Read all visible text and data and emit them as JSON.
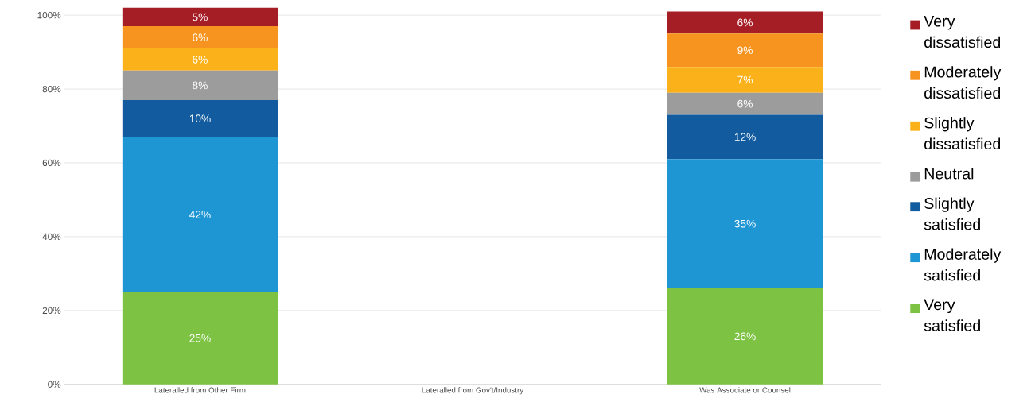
{
  "chart_data": {
    "type": "bar",
    "stacked": true,
    "categories": [
      "Lateralled from Other Firm",
      "Lateralled from Gov't/Industry",
      "Was Associate or Counsel"
    ],
    "series": [
      {
        "name": "Very satisfied",
        "color": "#7dc242",
        "values": [
          25,
          null,
          26
        ],
        "value_labels": [
          "25%",
          null,
          "26%"
        ]
      },
      {
        "name": "Moderately satisfied",
        "color": "#1f96d4",
        "values": [
          42,
          null,
          35
        ],
        "value_labels": [
          "42%",
          null,
          "35%"
        ]
      },
      {
        "name": "Slightly satisfied",
        "color": "#115b9e",
        "values": [
          10,
          null,
          12
        ],
        "value_labels": [
          "10%",
          null,
          "12%"
        ]
      },
      {
        "name": "Neutral",
        "color": "#9b9c9b",
        "values": [
          8,
          null,
          6
        ],
        "value_labels": [
          "8%",
          null,
          "6%"
        ]
      },
      {
        "name": "Slightly dissatisfied",
        "color": "#fbb11a",
        "values": [
          6,
          null,
          7
        ],
        "value_labels": [
          "6%",
          null,
          "7%"
        ]
      },
      {
        "name": "Moderately dissatisfied",
        "color": "#f7941f",
        "values": [
          6,
          null,
          9
        ],
        "value_labels": [
          "6%",
          null,
          "9%"
        ]
      },
      {
        "name": "Very dissatisfied",
        "color": "#a51e25",
        "values": [
          5,
          null,
          6
        ],
        "value_labels": [
          "5%",
          null,
          "6%"
        ]
      }
    ],
    "ylim": [
      0,
      102
    ],
    "yticks": [
      {
        "value": 0,
        "label": "0%"
      },
      {
        "value": 20,
        "label": "20%"
      },
      {
        "value": 40,
        "label": "40%"
      },
      {
        "value": 60,
        "label": "60%"
      },
      {
        "value": 80,
        "label": "80%"
      },
      {
        "value": 100,
        "label": "100%"
      }
    ],
    "grid": "y",
    "legend": "right"
  }
}
